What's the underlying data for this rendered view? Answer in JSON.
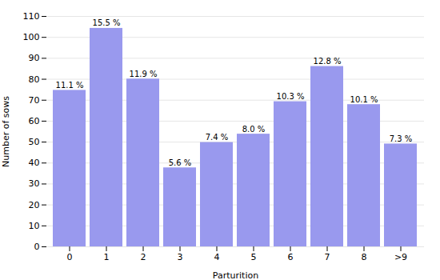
{
  "chart_data": {
    "type": "bar",
    "categories": [
      "0",
      "1",
      "2",
      "3",
      "4",
      "5",
      "6",
      "7",
      "8",
      ">9"
    ],
    "values": [
      74.7,
      104.3,
      80.1,
      37.7,
      49.8,
      53.8,
      69.3,
      86.1,
      67.9,
      49.1
    ],
    "annotations": [
      "11.1 %",
      "15.5 %",
      "11.9 %",
      "5.6 %",
      "7.4 %",
      "8.0 %",
      "10.3 %",
      "12.8 %",
      "10.1 %",
      "7.3 %"
    ],
    "color": "#9999ee",
    "xlabel": "Parturition",
    "ylabel": "Number of sows",
    "ylim": [
      0,
      110
    ],
    "yticks": [
      0,
      10,
      20,
      30,
      40,
      50,
      60,
      70,
      80,
      90,
      100,
      110
    ],
    "grid": true
  }
}
